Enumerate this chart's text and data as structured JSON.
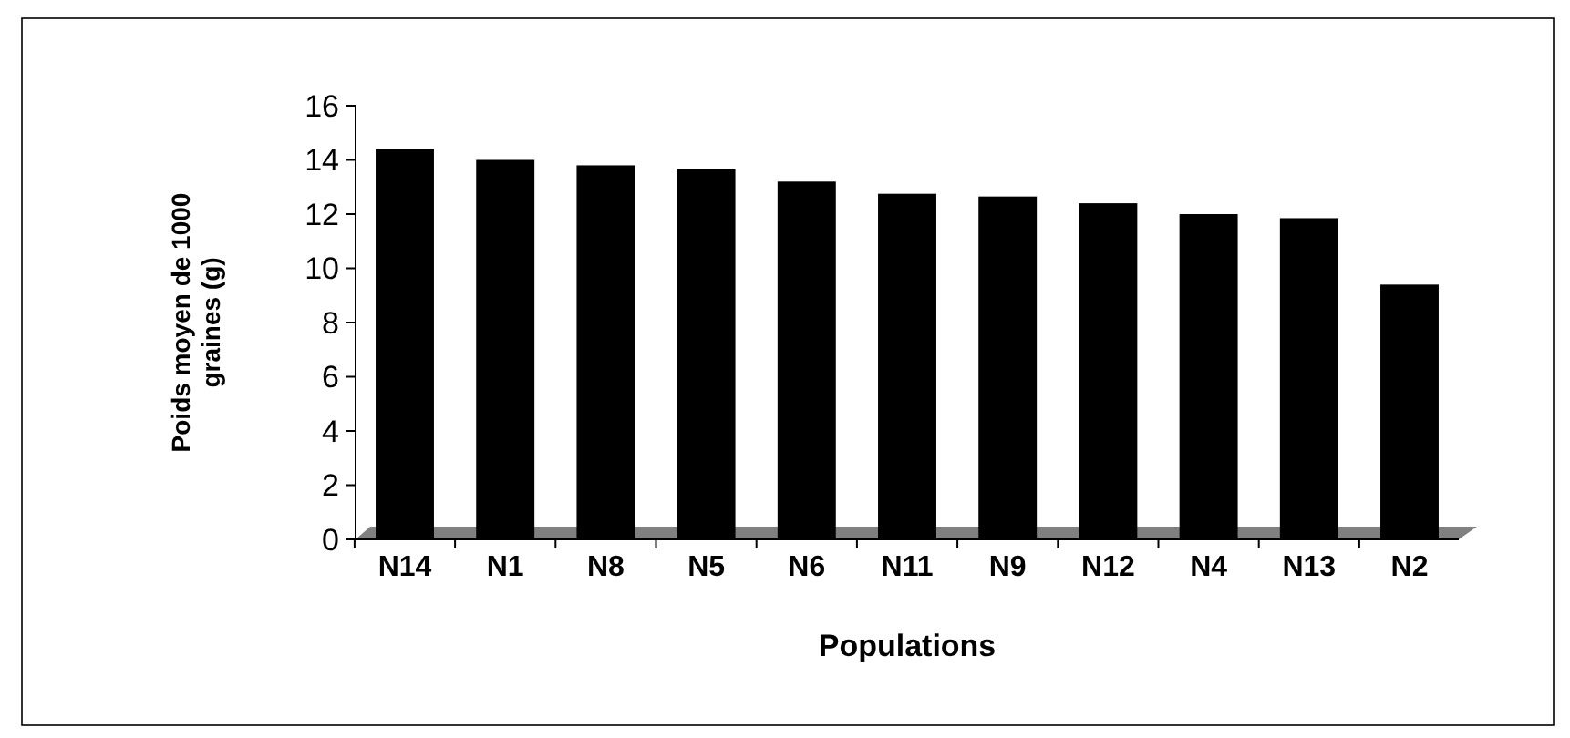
{
  "chart_data": {
    "type": "bar",
    "xlabel": "Populations",
    "ylabel": "Poids moyen de 1000 graines (g)",
    "categories": [
      "N14",
      "N1",
      "N8",
      "N5",
      "N6",
      "N11",
      "N9",
      "N12",
      "N4",
      "N13",
      "N2"
    ],
    "values": [
      14.4,
      14.0,
      13.8,
      13.65,
      13.2,
      12.75,
      12.65,
      12.4,
      12.0,
      11.85,
      9.4
    ],
    "color": "#000000",
    "ylim": [
      0,
      16
    ],
    "yticks": [
      0,
      2,
      4,
      6,
      8,
      10,
      12,
      14,
      16
    ],
    "grid": false
  }
}
